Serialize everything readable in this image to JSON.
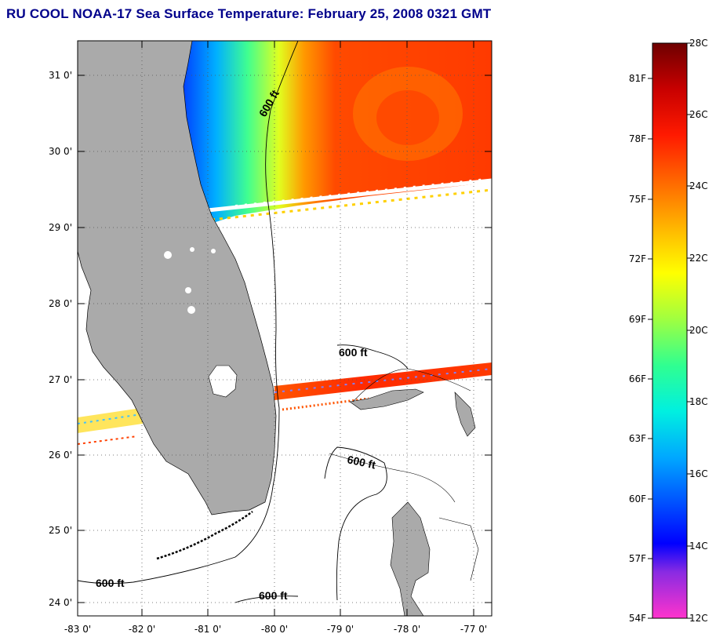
{
  "title": "RU COOL  NOAA-17  Sea Surface Temperature:  February 25, 2008 0321 GMT",
  "map": {
    "lat_labels": [
      "31 0'",
      "30 0'",
      "29 0'",
      "28 0'",
      "27 0'",
      "26 0'",
      "25 0'",
      "24 0'"
    ],
    "lon_labels": [
      "-83 0'",
      "-82 0'",
      "-81 0'",
      "-80 0'",
      "-79 0'",
      "-78 0'",
      "-77 0'"
    ],
    "contour_labels": [
      "600 ft",
      "600 ft",
      "600 ft",
      "600 ft",
      "600 ft"
    ],
    "land_color": "#aaaaaa",
    "icons": [
      "land-mass",
      "sst-field",
      "isobath-600ft",
      "cloud-gaps"
    ]
  },
  "colorbar": {
    "fahrenheit_labels": [
      "81F",
      "78F",
      "75F",
      "72F",
      "69F",
      "66F",
      "63F",
      "60F",
      "57F",
      "54F"
    ],
    "celsius_labels": [
      "28C",
      "26C",
      "24C",
      "22C",
      "20C",
      "18C",
      "16C",
      "14C",
      "12C"
    ],
    "colors": [
      "#7a0000",
      "#ff0000",
      "#ff6a00",
      "#ffd200",
      "#ffff00",
      "#7cff6a",
      "#00ffd0",
      "#00a0ff",
      "#0000ff",
      "#a020f0",
      "#ff33cc"
    ]
  }
}
